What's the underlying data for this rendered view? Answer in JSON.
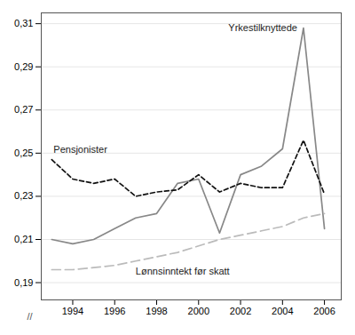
{
  "chart_data": {
    "type": "line",
    "x": [
      1993,
      1994,
      1995,
      1996,
      1997,
      1998,
      1999,
      2000,
      2001,
      2002,
      2003,
      2004,
      2005,
      2006
    ],
    "series": [
      {
        "name": "Yrkestilknyttede",
        "color": "#888888",
        "line_style": "solid",
        "values": [
          0.21,
          0.208,
          0.21,
          0.215,
          0.22,
          0.222,
          0.236,
          0.238,
          0.213,
          0.24,
          0.244,
          0.252,
          0.308,
          0.215
        ]
      },
      {
        "name": "Pensjonister",
        "color": "#111111",
        "line_style": "dashed",
        "values": [
          0.247,
          0.238,
          0.236,
          0.238,
          0.23,
          0.232,
          0.233,
          0.24,
          0.232,
          0.236,
          0.234,
          0.234,
          0.256,
          0.231
        ]
      },
      {
        "name": "Lønnsinntekt før skatt",
        "color": "#bbbbbb",
        "line_style": "longdashed",
        "values": [
          0.196,
          0.196,
          0.197,
          0.198,
          0.2,
          0.202,
          0.204,
          0.207,
          0.21,
          0.212,
          0.214,
          0.216,
          0.22,
          0.222
        ]
      }
    ],
    "xlim": [
      1992.5,
      2006.8
    ],
    "xticks": [
      1994,
      1996,
      1998,
      2000,
      2002,
      2004,
      2006
    ],
    "ylim": [
      0.182,
      0.315
    ],
    "yticks": [
      {
        "value": 0.19,
        "label": "0,19"
      },
      {
        "value": 0.21,
        "label": "0,21"
      },
      {
        "value": 0.23,
        "label": "0,23"
      },
      {
        "value": 0.25,
        "label": "0,25"
      },
      {
        "value": 0.27,
        "label": "0,27"
      },
      {
        "value": 0.29,
        "label": "0,29"
      },
      {
        "value": 0.31,
        "label": "0,31"
      }
    ],
    "grid": true,
    "annotations": [
      "//"
    ]
  }
}
